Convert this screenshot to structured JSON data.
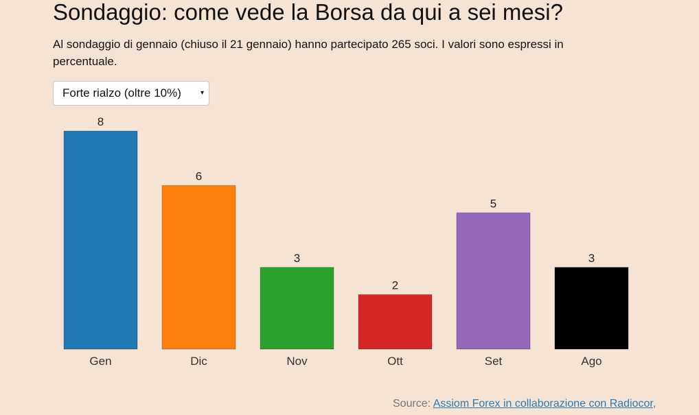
{
  "header": {
    "title": "Sondaggio: come vede la Borsa da qui a sei mesi?",
    "subtitle": "Al sondaggio di gennaio (chiuso il 21 gennaio) hanno partecipato 265 soci. I valori sono espressi in percentuale."
  },
  "dropdown": {
    "selected": "Forte rialzo (oltre 10%)",
    "caret": "▾"
  },
  "footer": {
    "source_label": "Source: ",
    "source_link": "Assiom Forex in collaborazione con Radiocor",
    "source_trailing": ","
  },
  "chart_data": {
    "type": "bar",
    "categories": [
      "Gen",
      "Dic",
      "Nov",
      "Ott",
      "Set",
      "Ago"
    ],
    "values": [
      8,
      6,
      3,
      2,
      5,
      3
    ],
    "colors": [
      "#1f77b4",
      "#ff7f0e",
      "#2ca02c",
      "#d62728",
      "#9467bd",
      "#000000"
    ],
    "ylim": [
      0,
      8
    ],
    "title": "",
    "xlabel": "",
    "ylabel": "",
    "grid": false,
    "data_labels": true
  }
}
